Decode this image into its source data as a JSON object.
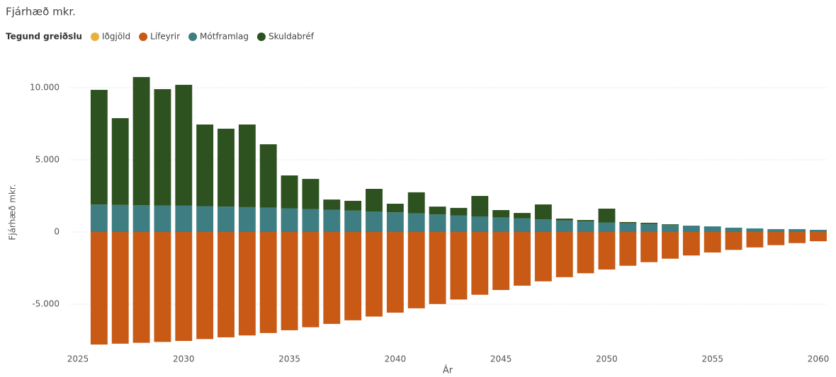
{
  "chart_data": {
    "type": "stacked_bar",
    "title": "Fjárhæð mkr.",
    "legend_title": "Tegund greiðslu",
    "x_label": "Ár",
    "y_label": "Fjárhæð mkr.",
    "x": [
      2026,
      2027,
      2028,
      2029,
      2030,
      2031,
      2032,
      2033,
      2034,
      2035,
      2036,
      2037,
      2038,
      2039,
      2040,
      2041,
      2042,
      2043,
      2044,
      2045,
      2046,
      2047,
      2048,
      2049,
      2050,
      2051,
      2052,
      2053,
      2054,
      2055,
      2056,
      2057,
      2058,
      2059,
      2060
    ],
    "series": [
      {
        "name": "Iðgjöld",
        "color": "#e8b13a",
        "values": [
          0,
          0,
          0,
          0,
          0,
          0,
          0,
          0,
          0,
          0,
          0,
          0,
          0,
          0,
          0,
          0,
          0,
          0,
          0,
          0,
          0,
          0,
          0,
          0,
          0,
          0,
          0,
          0,
          0,
          0,
          0,
          0,
          0,
          0,
          0
        ]
      },
      {
        "name": "Lífeyrir",
        "color": "#c85a16",
        "values": [
          -7800,
          -7740,
          -7680,
          -7620,
          -7550,
          -7420,
          -7300,
          -7170,
          -7000,
          -6810,
          -6600,
          -6370,
          -6120,
          -5860,
          -5590,
          -5290,
          -4990,
          -4680,
          -4350,
          -4020,
          -3720,
          -3420,
          -3130,
          -2860,
          -2600,
          -2340,
          -2090,
          -1850,
          -1630,
          -1420,
          -1240,
          -1070,
          -910,
          -770,
          -640
        ]
      },
      {
        "name": "Mótframlag",
        "color": "#3e7e82",
        "values": [
          1900,
          1880,
          1860,
          1840,
          1820,
          1790,
          1760,
          1720,
          1680,
          1640,
          1590,
          1540,
          1480,
          1420,
          1360,
          1290,
          1220,
          1150,
          1080,
          1010,
          940,
          870,
          800,
          730,
          660,
          600,
          550,
          500,
          440,
          390,
          300,
          250,
          200,
          200,
          150
        ]
      },
      {
        "name": "Skuldabréf",
        "color": "#2d5220",
        "values": [
          7950,
          6010,
          8880,
          8060,
          8380,
          5660,
          5400,
          5730,
          4400,
          2280,
          2090,
          710,
          680,
          1570,
          600,
          1460,
          540,
          520,
          1420,
          510,
          380,
          1040,
          130,
          100,
          960,
          90,
          90,
          40,
          0,
          0,
          0,
          0,
          0,
          0,
          0
        ]
      }
    ],
    "xlim": [
      2025,
      2060
    ],
    "xticks": [
      2025,
      2030,
      2035,
      2040,
      2045,
      2050,
      2055,
      2060
    ],
    "ylim": [
      -8000,
      11000
    ],
    "yticks": [
      {
        "value": -5000,
        "label": "-5.000"
      },
      0,
      {
        "value": 5000,
        "label": "5.000"
      },
      {
        "value": 10000,
        "label": "10.000"
      }
    ],
    "grid": true
  }
}
